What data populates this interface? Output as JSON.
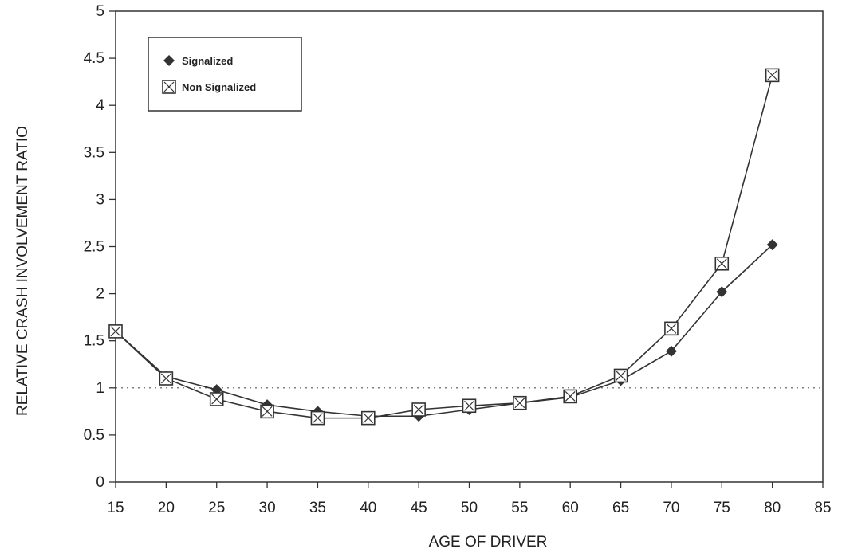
{
  "chart_data": {
    "type": "line",
    "title": "",
    "xlabel": "AGE OF DRIVER",
    "ylabel": "RELATIVE CRASH INVOLVEMENT RATIO",
    "xlim": [
      15,
      85
    ],
    "ylim": [
      0,
      5
    ],
    "xticks": [
      "15",
      "20",
      "25",
      "30",
      "35",
      "40",
      "45",
      "50",
      "55",
      "60",
      "65",
      "70",
      "75",
      "80",
      "85"
    ],
    "yticks": [
      "0",
      "0.5",
      "1",
      "1.5",
      "2",
      "2.5",
      "3",
      "3.5",
      "4",
      "4.5",
      "5"
    ],
    "reference_line": 1,
    "grid": false,
    "legend_position": "top-left",
    "series": [
      {
        "name": "Signalized",
        "marker": "diamond",
        "color": "#333333",
        "x": [
          15,
          20,
          25,
          30,
          35,
          40,
          45,
          50,
          55,
          60,
          65,
          70,
          75,
          80
        ],
        "y": [
          1.6,
          1.12,
          0.98,
          0.82,
          0.75,
          0.7,
          0.7,
          0.77,
          0.84,
          0.9,
          1.08,
          1.39,
          2.02,
          2.52
        ]
      },
      {
        "name": "Non Signalized",
        "marker": "square-x",
        "color": "#333333",
        "x": [
          15,
          20,
          25,
          30,
          35,
          40,
          45,
          50,
          55,
          60,
          65,
          70,
          75,
          80
        ],
        "y": [
          1.6,
          1.1,
          0.88,
          0.75,
          0.68,
          0.68,
          0.77,
          0.81,
          0.84,
          0.91,
          1.13,
          1.63,
          2.32,
          4.32
        ]
      }
    ]
  }
}
